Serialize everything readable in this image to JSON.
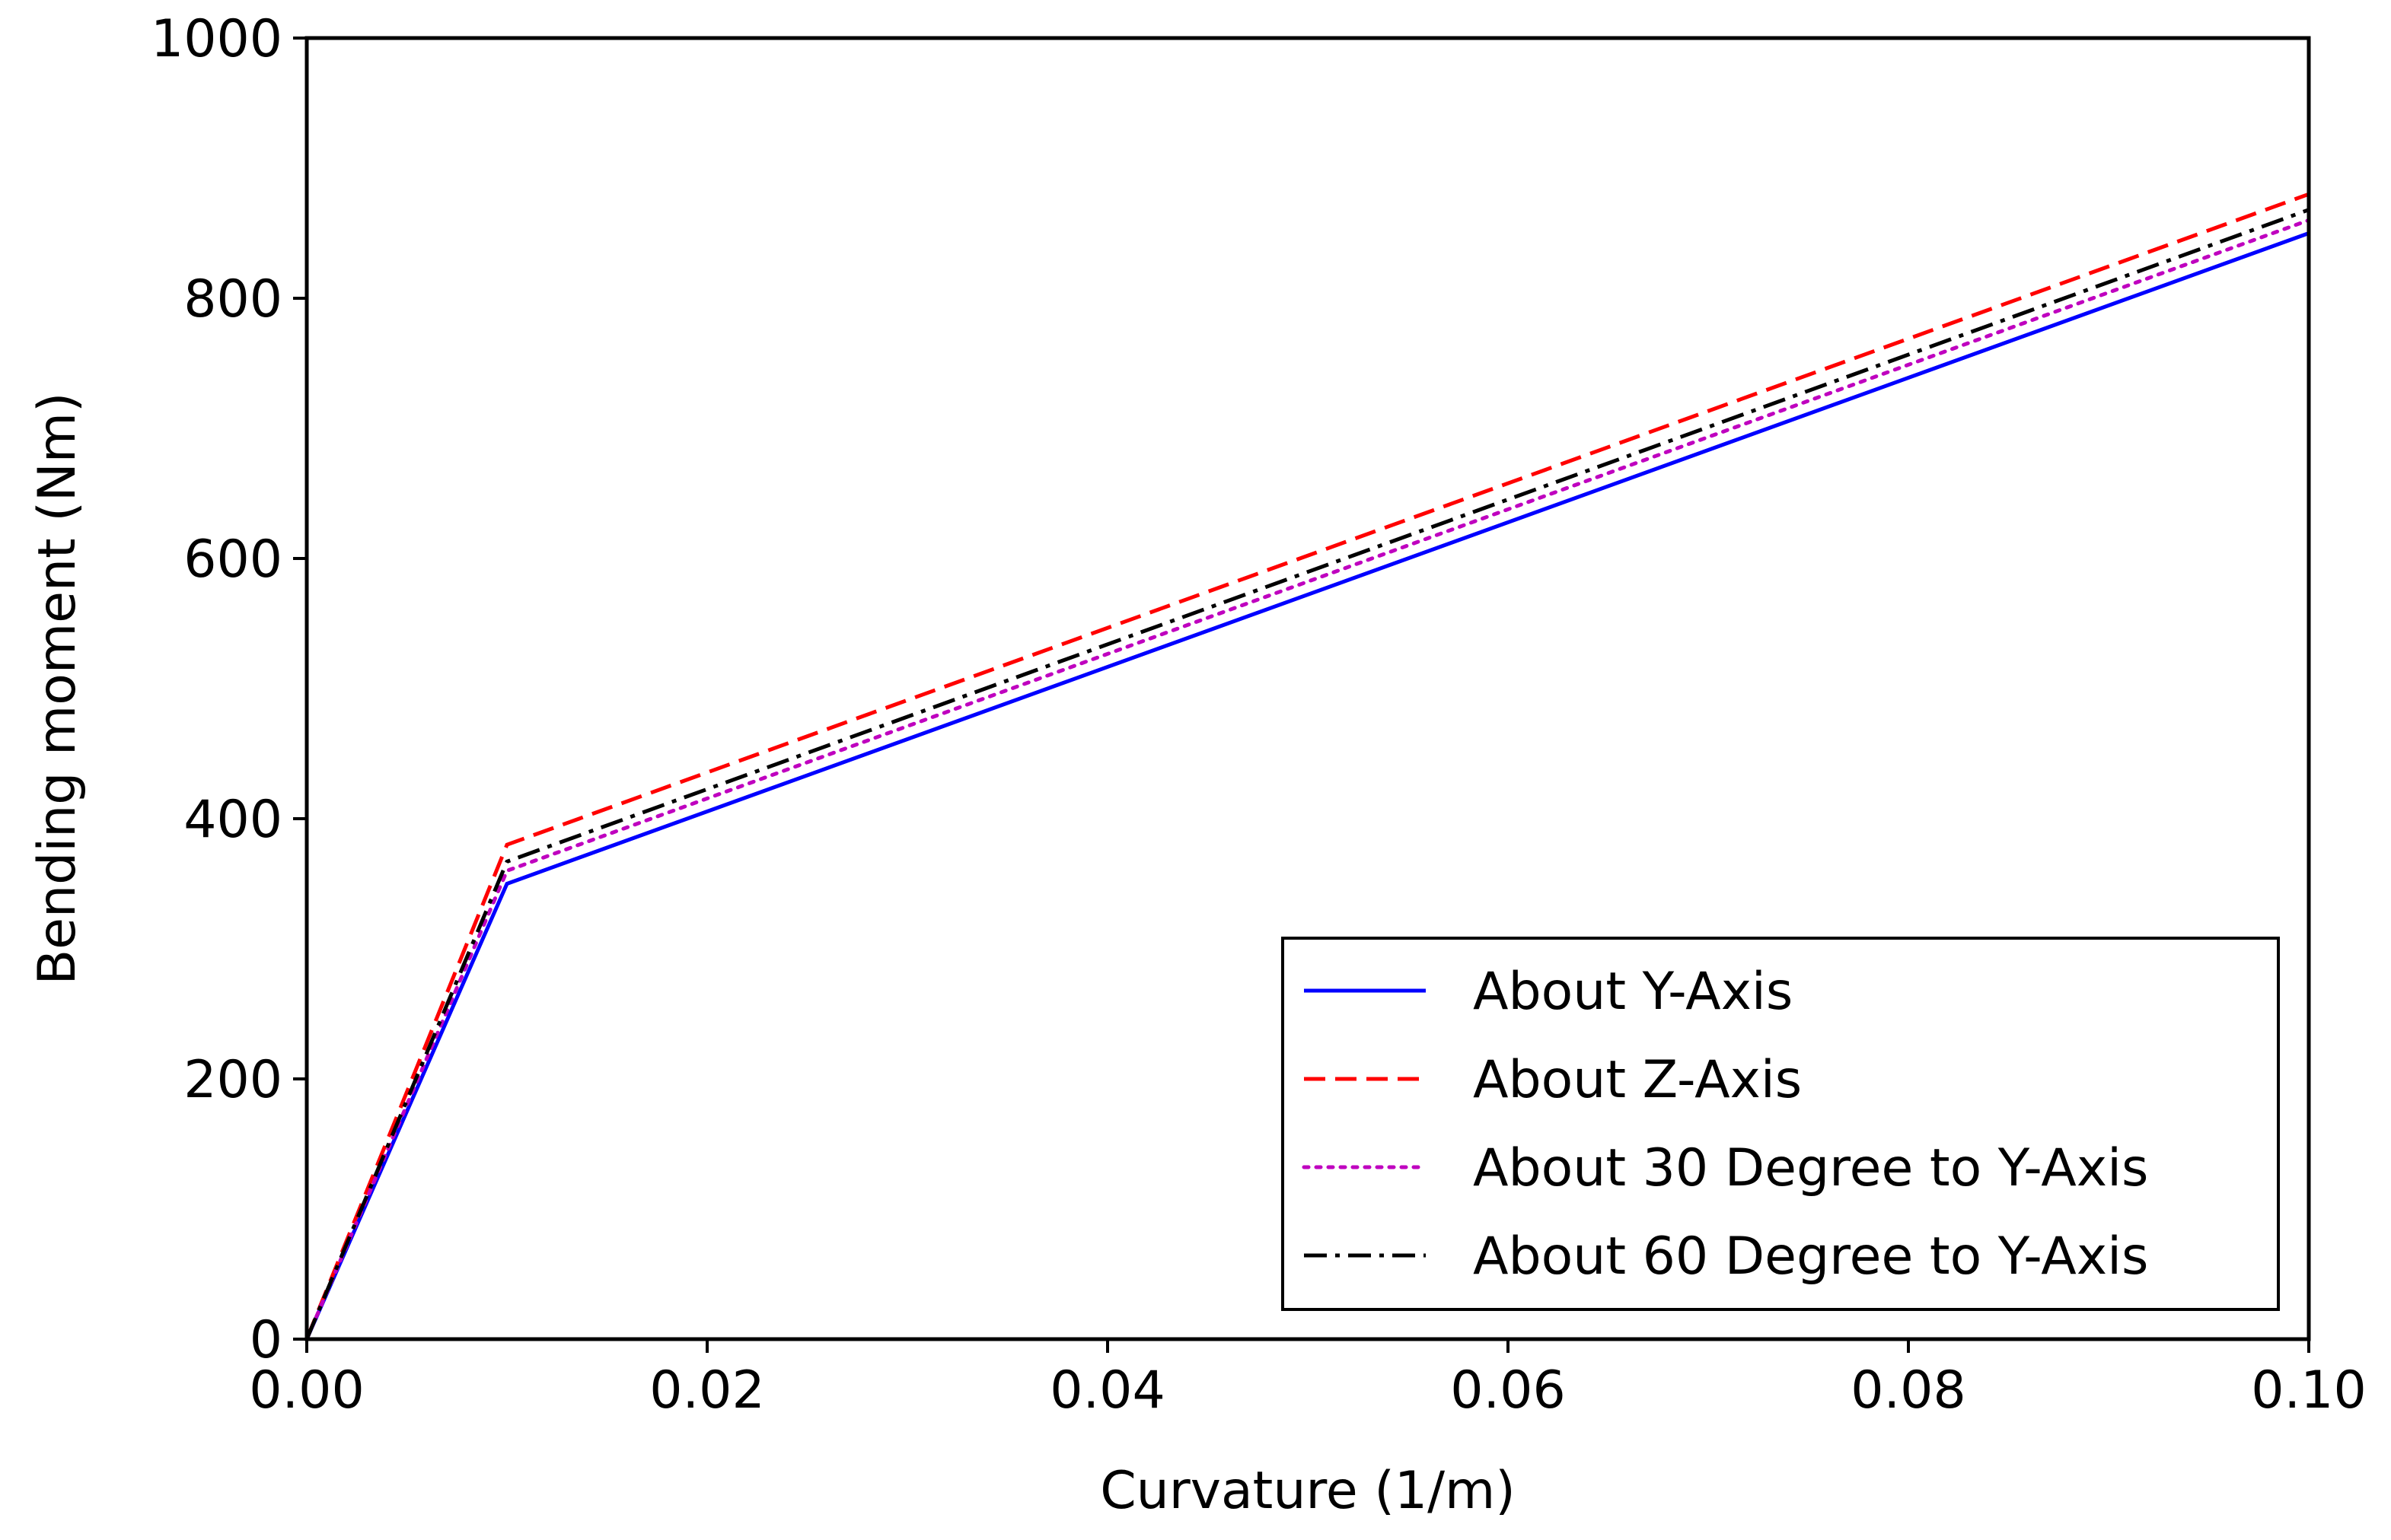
{
  "chart_data": {
    "type": "line",
    "title": "",
    "xlabel": "Curvature (1/m)",
    "ylabel": "Bending moment (Nm)",
    "xlim": [
      0,
      0.1
    ],
    "ylim": [
      0,
      1000
    ],
    "grid": false,
    "legend_position": "lower-right",
    "x_ticks": [
      0.0,
      0.02,
      0.04,
      0.06,
      0.08,
      0.1
    ],
    "x_tick_labels": [
      "0.00",
      "0.02",
      "0.04",
      "0.06",
      "0.08",
      "0.10"
    ],
    "y_ticks": [
      0,
      200,
      400,
      600,
      800,
      1000
    ],
    "y_tick_labels": [
      "0",
      "200",
      "400",
      "600",
      "800",
      "1000"
    ],
    "series": [
      {
        "name": "About Y-Axis",
        "color": "#0000ff",
        "style": "solid",
        "x": [
          0,
          0.01,
          0.1
        ],
        "y": [
          0,
          350,
          850
        ]
      },
      {
        "name": "About Z-Axis",
        "color": "#ff0000",
        "style": "dashed",
        "x": [
          0,
          0.01,
          0.1
        ],
        "y": [
          0,
          380,
          880
        ]
      },
      {
        "name": "About 30 Degree to Y-Axis",
        "color": "#bf00bf",
        "style": "dotted",
        "x": [
          0,
          0.01,
          0.1
        ],
        "y": [
          0,
          360,
          860
        ]
      },
      {
        "name": "About 60 Degree to Y-Axis",
        "color": "#000000",
        "style": "dashdot",
        "x": [
          0,
          0.01,
          0.1
        ],
        "y": [
          0,
          367,
          868
        ]
      }
    ]
  }
}
